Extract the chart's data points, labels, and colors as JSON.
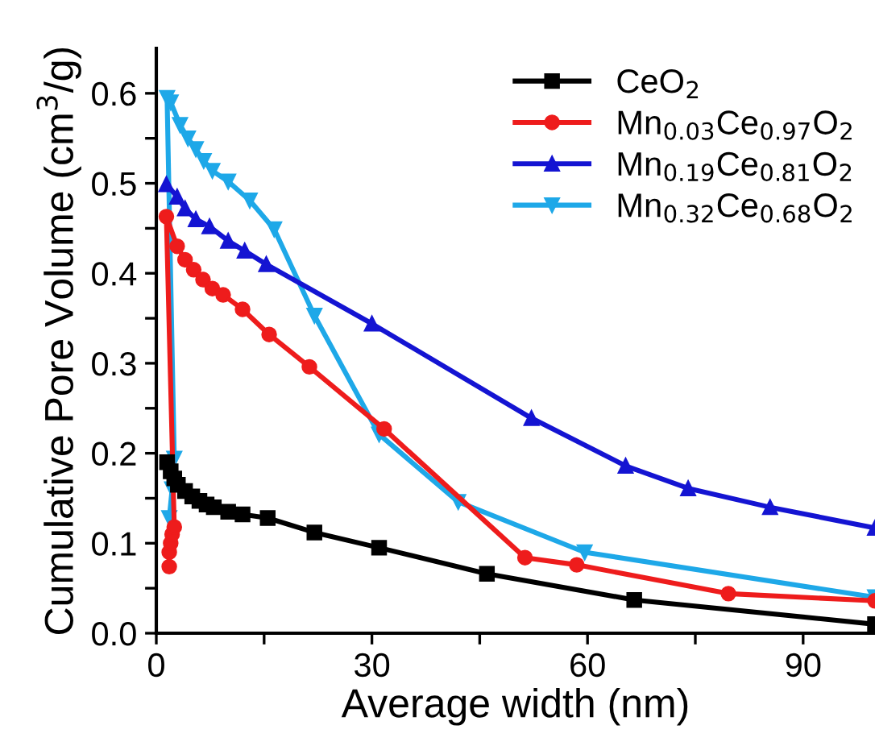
{
  "chart_data": {
    "type": "line",
    "xlabel": "Average width (nm)",
    "ylabel": "Cumulative Pore Volume (cm$^{3}$/g)",
    "xlim": [
      0,
      100
    ],
    "xticks": [
      0,
      {
        "value": 15,
        "label": null
      },
      30,
      {
        "value": 45,
        "label": null
      },
      60,
      {
        "value": 75,
        "label": null
      },
      90
    ],
    "ylim": [
      0,
      0.65
    ],
    "yticks": [
      "0.0",
      {
        "value": 0.05,
        "label": null
      },
      0.1,
      {
        "value": 0.15,
        "label": null
      },
      0.2,
      {
        "value": 0.25,
        "label": null
      },
      0.3,
      {
        "value": 0.35,
        "label": null
      },
      0.4,
      {
        "value": 0.45,
        "label": null
      },
      0.5,
      {
        "value": 0.55,
        "label": null
      },
      0.6
    ],
    "legend": "top right",
    "grid": false,
    "line_style": "solid",
    "series": [
      {
        "name": "CeO$_{2}$",
        "color": "#000000",
        "marker": "square",
        "x": [
          1.5,
          2,
          2.5,
          3,
          4,
          5,
          6,
          7,
          8,
          10,
          12,
          15.5,
          22,
          31,
          46,
          66.5,
          100
        ],
        "values": [
          0.19,
          0.18,
          0.172,
          0.165,
          0.158,
          0.152,
          0.147,
          0.143,
          0.14,
          0.135,
          0.132,
          0.128,
          0.112,
          0.095,
          0.066,
          0.037,
          0.01
        ]
      },
      {
        "name": "Mn$_{0.03}$Ce$_{0.97}$O$_{2}$",
        "color": "#ee1c1c",
        "marker": "circle",
        "x": [
          1.8,
          1.8,
          2.0,
          2.2,
          2.5,
          1.4,
          2.9,
          4,
          5.2,
          6.5,
          7.8,
          9.3,
          12,
          15.7,
          21.3,
          31.7,
          51.3,
          58.5,
          79.6,
          100
        ],
        "values": [
          0.074,
          0.09,
          0.1,
          0.11,
          0.118,
          0.463,
          0.43,
          0.415,
          0.404,
          0.393,
          0.383,
          0.376,
          0.36,
          0.332,
          0.296,
          0.227,
          0.084,
          0.076,
          0.044,
          0.036
        ]
      },
      {
        "name": "Mn$_{0.19}$Ce$_{0.81}$O$_{2}$",
        "color": "#1414d2",
        "marker": "triangle",
        "x": [
          1.4,
          2.9,
          4,
          5.5,
          7.4,
          10,
          12.3,
          15.3,
          30,
          52.2,
          65.3,
          74,
          85.4,
          100
        ],
        "values": [
          0.499,
          0.485,
          0.472,
          0.46,
          0.452,
          0.436,
          0.425,
          0.41,
          0.344,
          0.239,
          0.186,
          0.161,
          0.14,
          0.117
        ]
      },
      {
        "name": "Mn$_{0.32}$Ce$_{0.68}$O$_{2}$",
        "color": "#1ea8e8",
        "marker": "triangle_down",
        "x": [
          1.8,
          2.2,
          2.5,
          1.5,
          2,
          3.3,
          4.4,
          5.5,
          6.6,
          7.8,
          10,
          13,
          16.4,
          22,
          31,
          42,
          59.6,
          100
        ],
        "values": [
          0.128,
          0.16,
          0.194,
          0.595,
          0.59,
          0.565,
          0.55,
          0.538,
          0.525,
          0.514,
          0.502,
          0.481,
          0.449,
          0.353,
          0.221,
          0.146,
          0.09,
          0.04
        ]
      }
    ]
  }
}
